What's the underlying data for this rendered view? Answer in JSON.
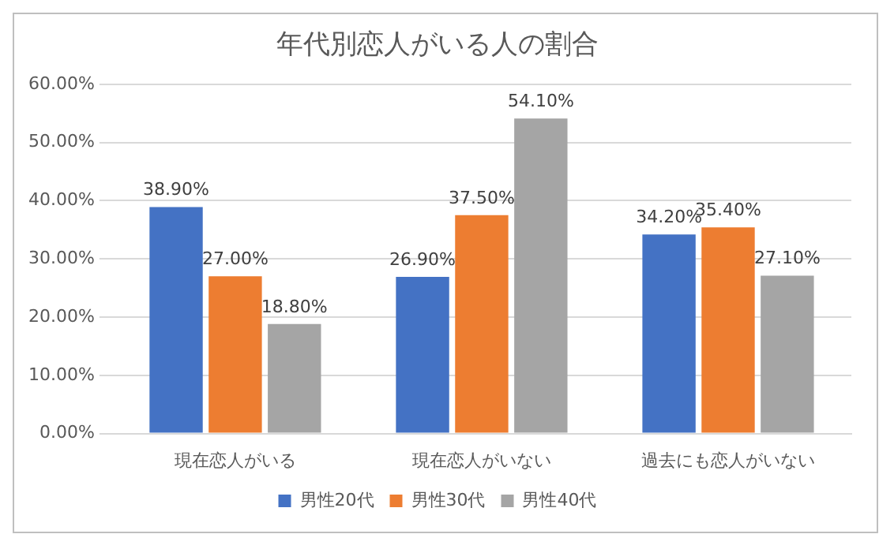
{
  "chart_data": {
    "type": "bar",
    "title": "年代別恋人がいる人の割合",
    "categories": [
      "現在恋人がいる",
      "現在恋人がいない",
      "過去にも恋人がいない"
    ],
    "series": [
      {
        "name": "男性20代",
        "color": "#4472c4",
        "values": [
          38.9,
          26.9,
          34.2
        ],
        "value_labels": [
          "38.90%",
          "26.90%",
          "34.20%"
        ]
      },
      {
        "name": "男性30代",
        "color": "#ed7d31",
        "values": [
          27.0,
          37.5,
          35.4
        ],
        "value_labels": [
          "27.00%",
          "37.50%",
          "35.40%"
        ]
      },
      {
        "name": "男性40代",
        "color": "#a5a5a5",
        "values": [
          18.8,
          54.1,
          27.1
        ],
        "value_labels": [
          "18.80%",
          "54.10%",
          "27.10%"
        ]
      }
    ],
    "ylim": [
      0,
      60
    ],
    "yticks": [
      {
        "value": 0,
        "label": "0.00%"
      },
      {
        "value": 10,
        "label": "10.00%"
      },
      {
        "value": 20,
        "label": "20.00%"
      },
      {
        "value": 30,
        "label": "30.00%"
      },
      {
        "value": 40,
        "label": "40.00%"
      },
      {
        "value": 50,
        "label": "50.00%"
      },
      {
        "value": 60,
        "label": "60.00%"
      }
    ],
    "grid": "y",
    "legend": "bottom"
  }
}
